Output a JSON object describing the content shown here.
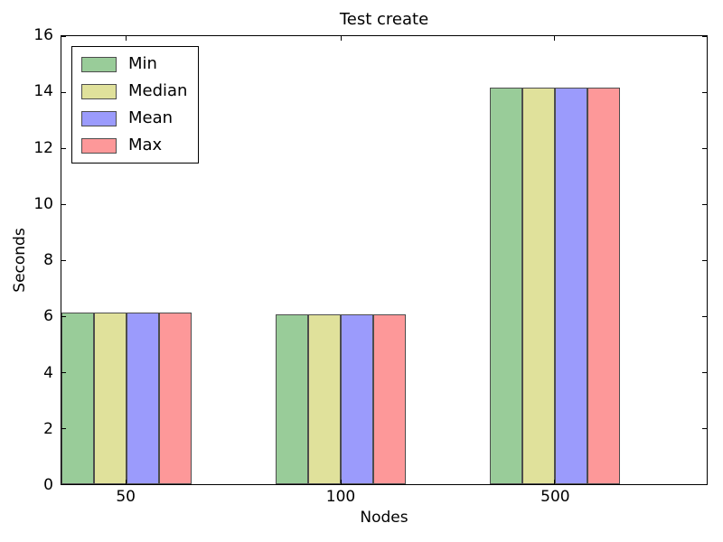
{
  "chart_data": {
    "type": "bar",
    "title": "Test create",
    "xlabel": "Nodes",
    "ylabel": "Seconds",
    "categories": [
      "50",
      "100",
      "500"
    ],
    "series": [
      {
        "name": "Min",
        "color": "#99cc99",
        "edge_color": "#4d4d4d",
        "values": [
          6.13,
          6.07,
          14.16
        ]
      },
      {
        "name": "Median",
        "color": "#e0e19b",
        "edge_color": "#4d4d4d",
        "values": [
          6.13,
          6.07,
          14.16
        ]
      },
      {
        "name": "Mean",
        "color": "#9b9bfc",
        "edge_color": "#4d4d4d",
        "values": [
          6.13,
          6.07,
          14.16
        ]
      },
      {
        "name": "Max",
        "color": "#fd9899",
        "edge_color": "#4d4d4d",
        "values": [
          6.13,
          6.07,
          14.16
        ]
      }
    ],
    "ylim": [
      0,
      16
    ],
    "yticks": [
      0,
      2,
      4,
      6,
      8,
      10,
      12,
      14,
      16
    ],
    "grid": false,
    "legend": {
      "position": "upper left",
      "entries": [
        "Min",
        "Median",
        "Mean",
        "Max"
      ]
    },
    "axis_color": "#000000",
    "background_color": "#ffffff"
  }
}
